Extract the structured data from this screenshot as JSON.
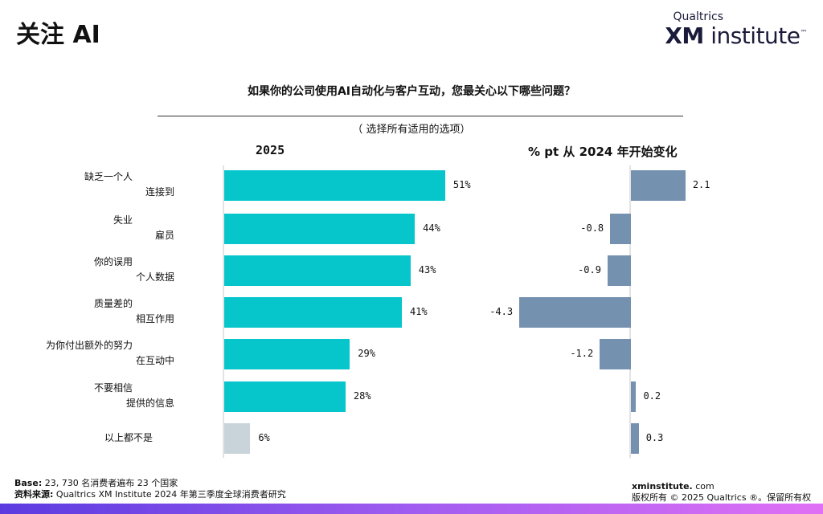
{
  "header": {
    "title": "关注 AI",
    "logo_top": "Qualtrics",
    "logo_xm": "XM",
    "logo_rest": " institute",
    "logo_tm": "™"
  },
  "question": "如果你的公司使用AI自动化与客户互动，您最关心以下哪些问题？",
  "subtitle": "（ 选择所有适用的选项）",
  "colors": {
    "bar_main": "#06c6cc",
    "bar_none": "#c8d4da",
    "bar_change": "#7491b0"
  },
  "chart_data": [
    {
      "type": "bar",
      "orientation": "horizontal",
      "title": "2025",
      "categories": [
        "缺乏一个人 连接到",
        "失业 雇员",
        "你的误用 个人数据",
        "质量差的 相互作用",
        "为你付出额外的努力 在互动中",
        "不要相信 提供的信息",
        "以上都不是"
      ],
      "category_lines": [
        [
          "缺乏一个人",
          "连接到"
        ],
        [
          "失业",
          "雇员"
        ],
        [
          "你的误用",
          "个人数据"
        ],
        [
          "质量差的",
          "相互作用"
        ],
        [
          "为你付出额外的努力",
          "在互动中"
        ],
        [
          "不要相信",
          "提供的信息"
        ],
        [
          "以上都不是"
        ]
      ],
      "values": [
        51,
        44,
        43,
        41,
        29,
        28,
        6
      ],
      "labels": [
        "51%",
        "44%",
        "43%",
        "41%",
        "29%",
        "28%",
        "6%"
      ]
    },
    {
      "type": "bar",
      "orientation": "horizontal",
      "title": "% pt 从 2024 年开始变化",
      "values": [
        2.1,
        -0.8,
        -0.9,
        -4.3,
        -1.2,
        0.2,
        0.3
      ],
      "labels": [
        "2.1",
        "-0.8",
        "-0.9",
        "-4.3",
        "-1.2",
        "0.2",
        "0.3"
      ]
    }
  ],
  "footer": {
    "base_label": "Base:",
    "base_text": "23, 730 名消费者遍布 23 个国家",
    "source_label": "资料来源:",
    "source_text": "Qualtrics XM Institute 2024 年第三季度全球消费者研究",
    "site_bold": "xminstitute.",
    "site_rest": " com",
    "copyright": "版权所有 © 2025 Qualtrics ®。保留所有权"
  }
}
